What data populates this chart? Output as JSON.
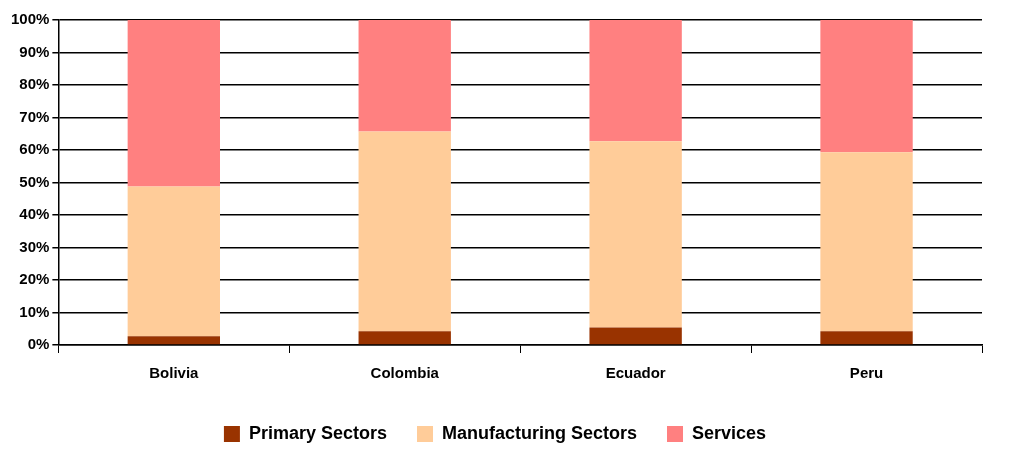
{
  "chart_data": {
    "type": "bar",
    "stacked": true,
    "categories": [
      "Bolivia",
      "Colombia",
      "Ecuador",
      "Peru"
    ],
    "series": [
      {
        "name": "Primary Sectors",
        "color": "#993300",
        "values": [
          2.7,
          4.2,
          5.4,
          4.2
        ]
      },
      {
        "name": "Manufacturing Sectors",
        "color": "#ffcc99",
        "values": [
          46.1,
          61.5,
          57.3,
          55.1
        ]
      },
      {
        "name": "Services",
        "color": "#ff8080",
        "values": [
          51.2,
          34.3,
          37.3,
          40.7
        ]
      }
    ],
    "ylim": [
      0,
      100
    ],
    "yticks": [
      {
        "value": 0,
        "label": "0%"
      },
      {
        "value": 10,
        "label": "10%"
      },
      {
        "value": 20,
        "label": "20%"
      },
      {
        "value": 30,
        "label": "30%"
      },
      {
        "value": 40,
        "label": "40%"
      },
      {
        "value": 50,
        "label": "50%"
      },
      {
        "value": 60,
        "label": "60%"
      },
      {
        "value": 70,
        "label": "70%"
      },
      {
        "value": 80,
        "label": "80%"
      },
      {
        "value": 90,
        "label": "90%"
      },
      {
        "value": 100,
        "label": "100%"
      }
    ],
    "grid": "y",
    "legend": "bottom"
  }
}
